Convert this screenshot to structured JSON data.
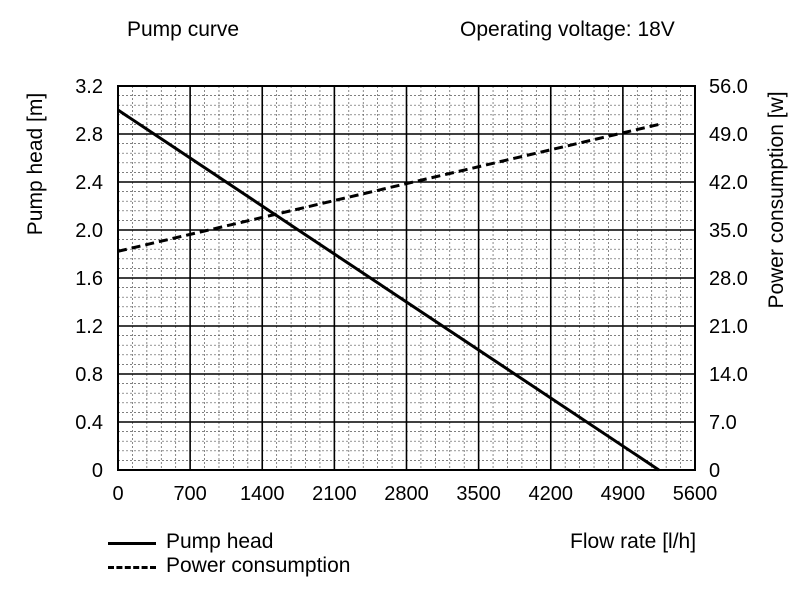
{
  "header": {
    "left_title": "Pump curve",
    "right_title": "Operating voltage: 18V"
  },
  "legend": {
    "items": [
      {
        "label": "Pump head",
        "style": "solid"
      },
      {
        "label": "Power consumption",
        "style": "dashed"
      }
    ]
  },
  "chart_data": {
    "type": "line",
    "xlabel": "Flow rate [l/h]",
    "ylabel_left": "Pump head [m]",
    "ylabel_right": "Power consumption [w]",
    "xlim": [
      0,
      5600
    ],
    "ylim_left": [
      0,
      3.2
    ],
    "ylim_right": [
      0,
      56.0
    ],
    "x_ticks": [
      "0",
      "700",
      "1400",
      "2100",
      "2800",
      "3500",
      "4200",
      "4900",
      "5600"
    ],
    "y_ticks_left": [
      "0",
      "0.4",
      "0.8",
      "1.2",
      "1.6",
      "2.0",
      "2.4",
      "2.8",
      "3.2"
    ],
    "y_ticks_right": [
      "0",
      "7.0",
      "14.0",
      "21.0",
      "28.0",
      "35.0",
      "42.0",
      "49.0",
      "56.0"
    ],
    "grid": true,
    "minor_grid": true,
    "legend_position": "bottom-left",
    "series": [
      {
        "name": "Pump head",
        "axis": "left",
        "style": "solid",
        "x": [
          0,
          5250
        ],
        "y": [
          3.0,
          0
        ]
      },
      {
        "name": "Power consumption",
        "axis": "right",
        "style": "dashed",
        "x": [
          0,
          5250
        ],
        "y": [
          31.9,
          50.4
        ]
      }
    ]
  }
}
